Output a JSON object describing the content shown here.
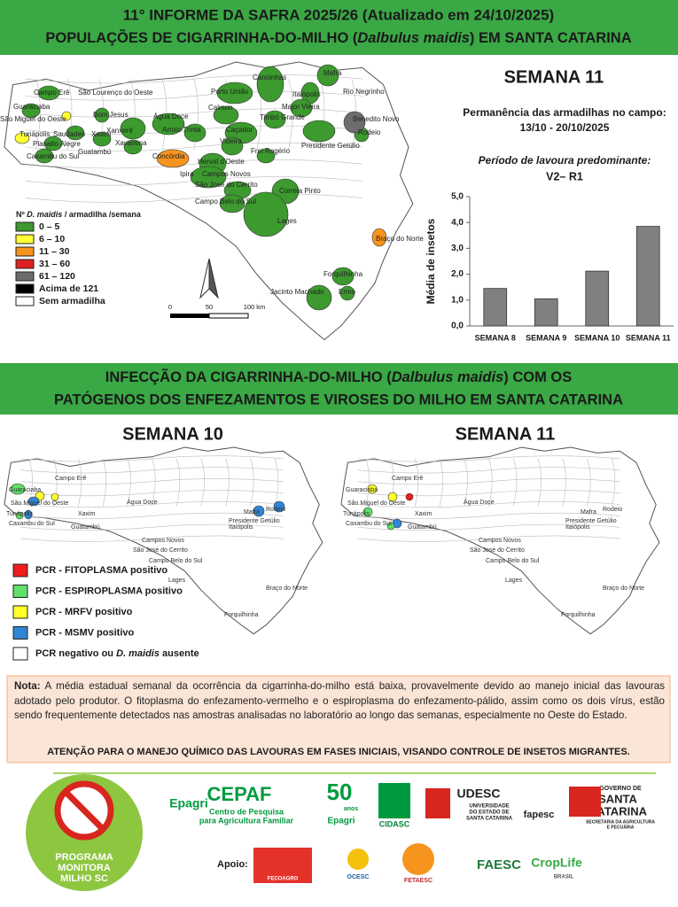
{
  "header": {
    "title_line1": "11° INFORME DA SAFRA 2025/26 (Atualizado em 24/10/2025)",
    "title_line2": [
      "POPULAÇÕES DE CIGARRINHA-DO-MILHO (",
      "Dalbulus maidis",
      ") EM SANTA CATARINA"
    ]
  },
  "map": {
    "legend_title": [
      "Nº ",
      "D. maidis",
      " / armadilha /semana"
    ],
    "legend": [
      {
        "label": "0 – 5",
        "color": "#3c9a2e"
      },
      {
        "label": "6 – 10",
        "color": "#ffff33"
      },
      {
        "label": "11 – 30",
        "color": "#f7941d"
      },
      {
        "label": "31 – 60",
        "color": "#e02020"
      },
      {
        "label": "61 – 120",
        "color": "#6d6d6d"
      },
      {
        "label": "Acima de 121",
        "color": "#000000"
      },
      {
        "label": "Sem armadilha",
        "color": "#ffffff"
      }
    ],
    "scale": [
      "0",
      "50",
      "100 km"
    ],
    "labels": [
      "Campo Erê",
      "São Lourenço do Oeste",
      "Guaraciaba",
      "São Miguel do Oeste",
      "Tunápolis",
      "Saudades",
      "Xaxim",
      "Planalto Alegre",
      "Caxambu do Sul",
      "Bom Jesus",
      "Xanxerê",
      "Xavantina",
      "Guatambú",
      "Concórdia",
      "Água Doce",
      "Arroio Trinta",
      "Calmon",
      "Porto União",
      "Canoinhas",
      "Mafra",
      "Itaiópolis",
      "Rio Negrinho",
      "Major Vieira",
      "Timbó Grande",
      "Caçador",
      "Videira",
      "Frei Rogério",
      "Herval d'Oeste",
      "Ipira",
      "Campos Novos",
      "São José do Cerrito",
      "Presidente Getúlio",
      "Benedito Novo",
      "Rodeio",
      "Correia Pinto",
      "Campo Belo do Sul",
      "Lages",
      "Braço do Norte",
      "Forquilhinha",
      "Jacinto Machado",
      "Ermo"
    ]
  },
  "week_panel": {
    "heading": "SEMANA 11",
    "trap_label": "Permanência das armadilhas no campo:",
    "trap_dates": "13/10 - 20/10/2025",
    "stage_label": "Período de lavoura predominante:",
    "stage": "V2– R1"
  },
  "chart_data": {
    "type": "bar",
    "y_label": "Média de insetos",
    "categories": [
      "SEMANA 8",
      "SEMANA 9",
      "SEMANA 10",
      "SEMANA 11"
    ],
    "values": [
      1.45,
      1.05,
      2.12,
      3.85
    ],
    "color": "#808080",
    "ylim": [
      0,
      5
    ],
    "yticks": [
      {
        "value": 0,
        "label": "0,0"
      },
      {
        "value": 1,
        "label": "1,0"
      },
      {
        "value": 2,
        "label": "2,0"
      },
      {
        "value": 3,
        "label": "3,0"
      },
      {
        "value": 4,
        "label": "4,0"
      },
      {
        "value": 5,
        "label": "5,0"
      }
    ]
  },
  "section2": {
    "title_line1": [
      "INFECÇÃO DA CIGARRINHA-DO-MILHO (",
      "Dalbulus maidis",
      ") COM OS"
    ],
    "title_line2": "PATÓGENOS DOS ENFEZAMENTOS E VIROSES DO MILHO EM SANTA CATARINA",
    "week_a": "SEMANA 10",
    "week_b": "SEMANA 11",
    "map_labels": [
      "Mafra",
      "Itaiópolis",
      "Campo Erê",
      "Guaraciaba",
      "São Miguel do Oeste",
      "Tunápolis",
      "Caxambu do Sul",
      "Xaxim",
      "Guatambú",
      "Água Doce",
      "Campos Novos",
      "São José do Cerrito",
      "Presidente Getúlio",
      "Rodeio",
      "Campo Belo do Sul",
      "Lages",
      "Braço do Norte",
      "Forquilhinha"
    ],
    "legend": [
      {
        "label": [
          "PCR - FITOPLASMA positivo"
        ],
        "color": "#ee1c1c"
      },
      {
        "label": [
          "PCR - ESPIROPLASMA positivo"
        ],
        "color": "#5fe06a"
      },
      {
        "label": [
          "PCR - MRFV positivo"
        ],
        "color": "#ffff2a"
      },
      {
        "label": [
          "PCR - MSMV positivo"
        ],
        "color": "#2f86d6"
      },
      {
        "label": [
          "PCR negativo ou ",
          "D. maidis",
          " ausente"
        ],
        "color": "#ffffff"
      }
    ]
  },
  "note": {
    "label": "Nota:",
    "text": "A média estadual semanal da ocorrência da cigarrinha-do-milho está baixa, provavelmente devido ao manejo inicial das lavouras adotado pelo produtor. O fitoplasma do enfezamento-vermelho e o espiroplasma do enfezamento-pálido, assim como os dois vírus, estão sendo frequentemente detectados nas amostras analisadas no laboratório ao longo das semanas, especialmente no Oeste do Estado.",
    "warning": "ATENÇÃO PARA O MANEJO QUÍMICO DAS LAVOURAS EM FASES INICIAIS, VISANDO CONTROLE DE INSETOS MIGRANTES."
  },
  "footer": {
    "program": [
      "PROGRAMA",
      "MONITORA",
      "MILHO SC"
    ],
    "logos": [
      "Epagri",
      "CEPAF",
      "Centro de Pesquisa",
      "para Agricultura Familiar",
      "50",
      "anos",
      "Epagri",
      "CIDASC",
      "UDESC",
      "UNIVERSIDADE",
      "DO ESTADO DE",
      "SANTA CATARINA",
      "fapesc",
      "GOVERNO DE",
      "SANTA",
      "CATARINA",
      "SECRETARIA DA AGRICULTURA",
      "E PECUÁRIA"
    ],
    "support_label": "Apoio:",
    "support_logos": [
      "FECOAGRO",
      "OCESC",
      "FETAESC",
      "FAESC",
      "CropLife",
      "BRASIL"
    ]
  }
}
